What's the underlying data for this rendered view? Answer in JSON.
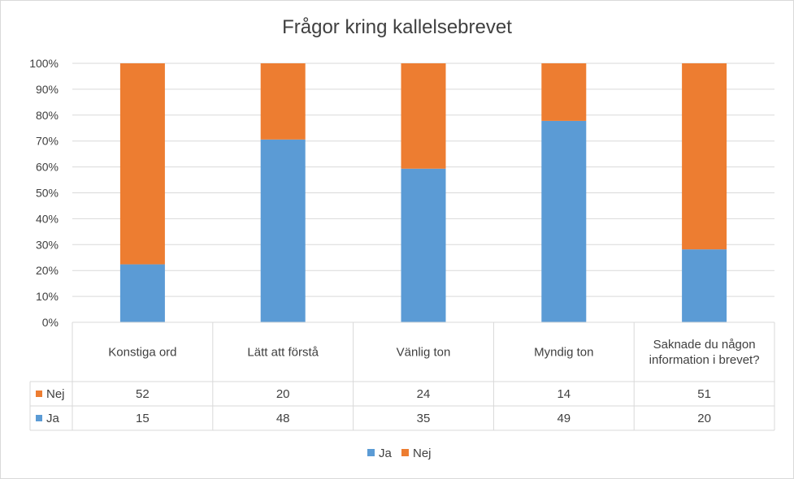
{
  "chart_data": {
    "type": "bar",
    "stacked": "percent",
    "title": "Frågor kring kallelsebrevet",
    "categories": [
      "Konstiga ord",
      "Lätt att förstå",
      "Vänlig ton",
      "Myndig ton",
      "Saknade du någon information i brevet?"
    ],
    "series": [
      {
        "name": "Ja",
        "values": [
          15,
          48,
          35,
          49,
          20
        ],
        "color": "#5b9bd5"
      },
      {
        "name": "Nej",
        "values": [
          52,
          20,
          24,
          14,
          51
        ],
        "color": "#ed7d31"
      }
    ],
    "y_ticks": [
      "0%",
      "10%",
      "20%",
      "30%",
      "40%",
      "50%",
      "60%",
      "70%",
      "80%",
      "90%",
      "100%"
    ],
    "ylim": [
      0,
      100
    ],
    "grid": true,
    "data_table": true,
    "table_row_order": [
      "Nej",
      "Ja"
    ],
    "legend": {
      "position": "bottom",
      "entries": [
        "Ja",
        "Nej"
      ]
    }
  }
}
